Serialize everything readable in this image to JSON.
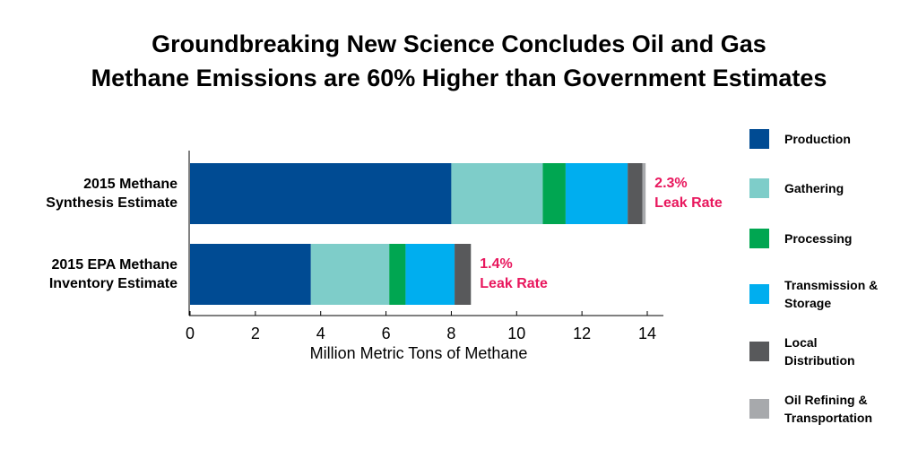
{
  "chart_data": {
    "type": "stacked-barh",
    "title": [
      "Groundbreaking New Science Concludes Oil and Gas",
      "Methane Emissions are 60% Higher than Government Estimates"
    ],
    "categories": [
      "2015 Methane Synthesis Estimate",
      "2015 EPA Methane Inventory Estimate"
    ],
    "series": [
      {
        "name": "Production",
        "color": "#004b93",
        "values": [
          8.0,
          3.7
        ]
      },
      {
        "name": "Gathering",
        "color": "#7ecdc9",
        "values": [
          2.8,
          2.4
        ]
      },
      {
        "name": "Processing",
        "color": "#00a651",
        "values": [
          0.7,
          0.5
        ]
      },
      {
        "name": "Transmission & Storage",
        "color": "#00aeef",
        "values": [
          1.9,
          1.5
        ]
      },
      {
        "name": "Local Distribution",
        "color": "#58595b",
        "values": [
          0.45,
          0.5
        ]
      },
      {
        "name": "Oil Refining & Transportation",
        "color": "#a7a9ac",
        "values": [
          0.1,
          0.0
        ]
      }
    ],
    "annotations": [
      [
        "2.3%",
        "Leak Rate"
      ],
      [
        "1.4%",
        "Leak Rate"
      ]
    ],
    "annotation_color": "#e8175d",
    "xlabel": "Million Metric Tons of Methane",
    "xlim": [
      0,
      14
    ],
    "xticks": [
      0,
      2,
      4,
      6,
      8,
      10,
      12,
      14
    ],
    "legend": "right"
  }
}
